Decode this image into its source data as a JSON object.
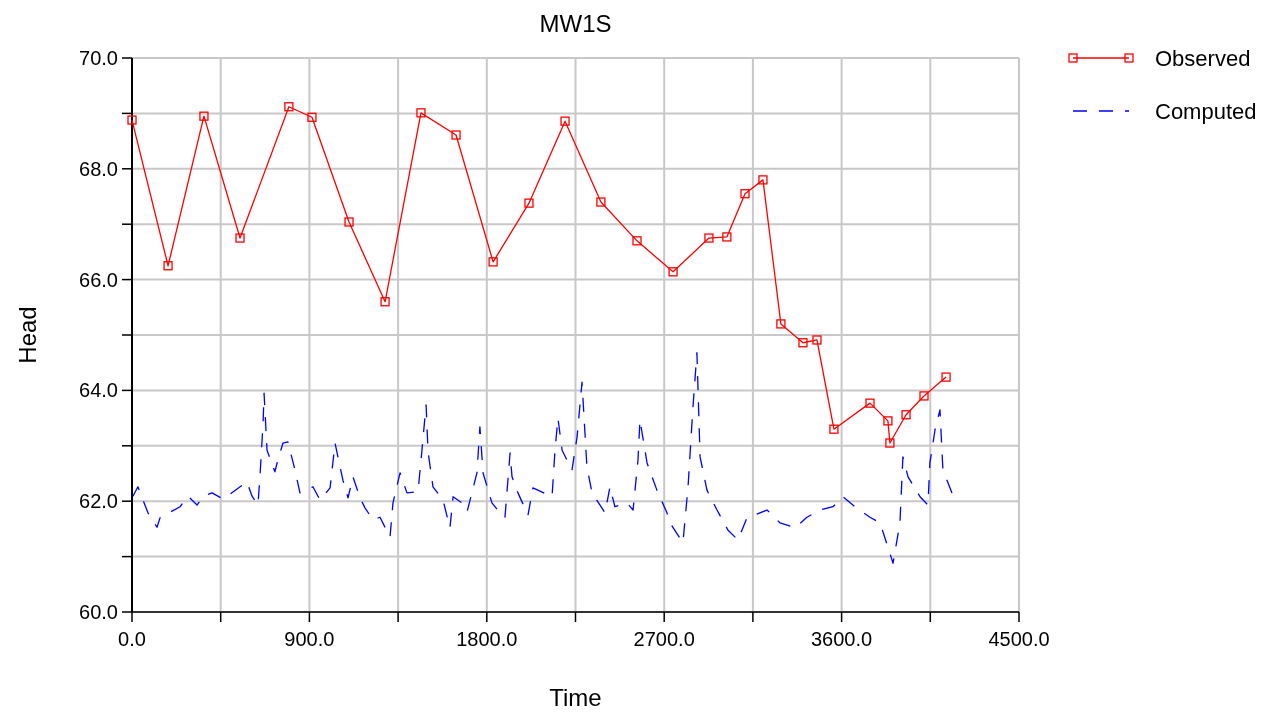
{
  "chart_data": {
    "type": "line",
    "title": "MW1S",
    "xlabel": "Time",
    "ylabel": "Head",
    "xlim": [
      0,
      4500
    ],
    "ylim": [
      60,
      70
    ],
    "xticks": [
      {
        "value": 0,
        "label": "0.0"
      },
      {
        "value": 450,
        "label": null
      },
      {
        "value": 900,
        "label": "900.0"
      },
      {
        "value": 1350,
        "label": null
      },
      {
        "value": 1800,
        "label": "1800.0"
      },
      {
        "value": 2250,
        "label": null
      },
      {
        "value": 2700,
        "label": "2700.0"
      },
      {
        "value": 3150,
        "label": null
      },
      {
        "value": 3600,
        "label": "3600.0"
      },
      {
        "value": 4050,
        "label": null
      },
      {
        "value": 4500,
        "label": "4500.0"
      }
    ],
    "yticks": [
      {
        "value": 60,
        "label": "60.0"
      },
      {
        "value": 61,
        "label": null
      },
      {
        "value": 62,
        "label": "62.0"
      },
      {
        "value": 63,
        "label": null
      },
      {
        "value": 64,
        "label": "64.0"
      },
      {
        "value": 65,
        "label": null
      },
      {
        "value": 66,
        "label": "66.0"
      },
      {
        "value": 67,
        "label": null
      },
      {
        "value": 68,
        "label": "68.0"
      },
      {
        "value": 69,
        "label": null
      },
      {
        "value": 70,
        "label": "70.0"
      }
    ],
    "grid": true,
    "legend": "top right",
    "series": [
      {
        "name": "Observed",
        "color": "#ff0000",
        "marker": "square",
        "line_style": "solid",
        "x": [
          0,
          183,
          365,
          548,
          796,
          913,
          1101,
          1284,
          1466,
          1644,
          1832,
          2014,
          2197,
          2379,
          2562,
          2745,
          2927,
          3018,
          3110,
          3201,
          3292,
          3404,
          3475,
          3561,
          3744,
          3835,
          3845,
          3927,
          4018,
          4130
        ],
        "values": [
          68.88,
          66.25,
          68.95,
          66.75,
          69.12,
          68.93,
          67.04,
          65.6,
          69.01,
          68.61,
          66.32,
          67.38,
          68.86,
          67.4,
          66.7,
          66.14,
          66.75,
          66.77,
          67.55,
          67.8,
          65.2,
          64.86,
          64.91,
          63.3,
          63.77,
          63.45,
          63.05,
          63.56,
          63.9,
          64.24
        ]
      },
      {
        "name": "Computed",
        "color": "#0000ff",
        "marker": "none",
        "line_style": "dashed",
        "x": [
          5,
          30,
          81,
          127,
          142,
          244,
          284,
          330,
          360,
          406,
          462,
          533,
          583,
          609,
          639,
          649,
          665,
          670,
          685,
          725,
          736,
          766,
          791,
          827,
          852,
          918,
          954,
          1005,
          1030,
          1070,
          1096,
          1121,
          1157,
          1182,
          1223,
          1258,
          1309,
          1324,
          1360,
          1395,
          1451,
          1471,
          1492,
          1502,
          1527,
          1578,
          1613,
          1629,
          1674,
          1700,
          1750,
          1765,
          1781,
          1826,
          1867,
          1892,
          1918,
          1928,
          1958,
          2009,
          2034,
          2131,
          2146,
          2161,
          2182,
          2232,
          2258,
          2283,
          2308,
          2334,
          2400,
          2425,
          2450,
          2511,
          2542,
          2567,
          2577,
          2613,
          2663,
          2714,
          2729,
          2795,
          2821,
          2846,
          2866,
          2882,
          2917,
          2968,
          3023,
          3074,
          3120,
          3222,
          3287,
          3364,
          3424,
          3490,
          3556,
          3607,
          3668,
          3744,
          3795,
          3835,
          3861,
          3896,
          3911,
          3937,
          3998,
          4038,
          4048,
          4074,
          4099,
          4114,
          4160
        ],
        "values": [
          62.09,
          62.26,
          61.79,
          61.53,
          61.7,
          61.9,
          62.09,
          61.93,
          62.09,
          62.15,
          62.04,
          62.22,
          62.35,
          62.09,
          61.93,
          62.44,
          63.41,
          63.95,
          62.92,
          62.53,
          62.69,
          63.05,
          63.07,
          62.56,
          62.15,
          62.26,
          62.02,
          62.24,
          63.05,
          62.38,
          62.06,
          62.44,
          62.06,
          61.88,
          61.66,
          61.71,
          61.35,
          61.97,
          62.51,
          62.15,
          62.17,
          62.92,
          63.74,
          62.89,
          62.26,
          62.02,
          61.52,
          62.08,
          61.97,
          61.81,
          62.51,
          63.34,
          62.51,
          61.97,
          61.79,
          61.7,
          62.87,
          62.44,
          62.15,
          61.75,
          62.24,
          62.08,
          62.92,
          63.5,
          62.92,
          62.56,
          63.16,
          64.15,
          62.62,
          62.15,
          61.79,
          62.26,
          61.9,
          61.97,
          61.84,
          62.74,
          63.47,
          62.69,
          62.2,
          61.79,
          61.61,
          61.25,
          62.26,
          63.7,
          64.68,
          62.8,
          62.2,
          61.84,
          61.48,
          61.3,
          61.7,
          61.84,
          61.61,
          61.52,
          61.71,
          61.84,
          61.9,
          62.08,
          61.9,
          61.71,
          61.61,
          61.17,
          60.88,
          61.61,
          62.8,
          62.44,
          62.08,
          61.93,
          62.69,
          63.29,
          63.65,
          62.56,
          62.15
        ]
      }
    ]
  }
}
